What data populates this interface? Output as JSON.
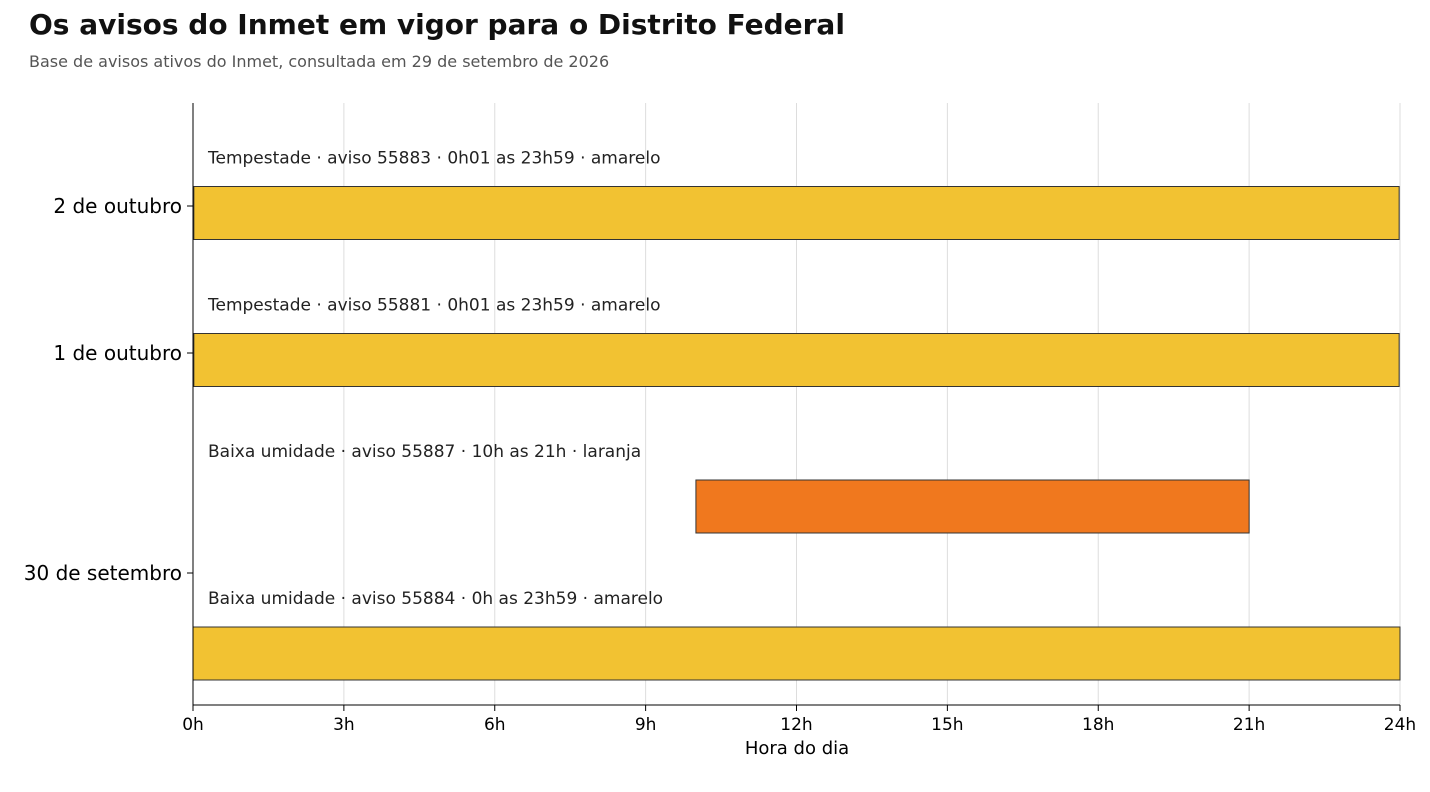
{
  "title": "Os avisos do Inmet em vigor para o Distrito Federal",
  "subtitle": "Base de avisos ativos do Inmet, consultada em 29 de setembro de 2026",
  "colors": {
    "amarelo": "#F2C232",
    "laranja": "#F0781E",
    "grid": "#dddddd",
    "bar_edge": "#333333"
  },
  "chart_data": {
    "type": "bar",
    "orientation": "horizontal",
    "xlabel": "Hora do dia",
    "xlim": [
      0,
      24
    ],
    "xticks": [
      0,
      3,
      6,
      9,
      12,
      15,
      18,
      21,
      24
    ],
    "xtick_labels": [
      "0h",
      "3h",
      "6h",
      "9h",
      "12h",
      "15h",
      "18h",
      "21h",
      "24h"
    ],
    "categories": [
      "30 de setembro",
      "1 de outubro",
      "2 de outubro"
    ],
    "grid": "vertical",
    "bars": [
      {
        "category": "30 de setembro",
        "start": 0,
        "end": 24,
        "level": "amarelo",
        "label": "Baixa umidade  ·  aviso 55884  ·  0h as 23h59  ·  amarelo"
      },
      {
        "category": "30 de setembro",
        "start": 10,
        "end": 21,
        "level": "laranja",
        "label": "Baixa umidade  ·  aviso 55887  ·  10h as 21h  ·  laranja"
      },
      {
        "category": "1 de outubro",
        "start": 0.0167,
        "end": 23.983,
        "level": "amarelo",
        "label": "Tempestade  ·  aviso 55881  ·  0h01 as 23h59  ·  amarelo"
      },
      {
        "category": "2 de outubro",
        "start": 0.0167,
        "end": 23.983,
        "level": "amarelo",
        "label": "Tempestade  ·  aviso 55883  ·  0h01 as 23h59  ·  amarelo"
      }
    ]
  }
}
